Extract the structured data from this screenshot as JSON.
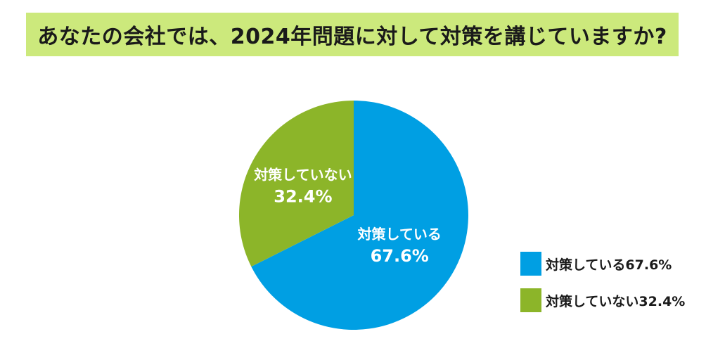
{
  "title": "あなたの会社では、2024年問題に対して対策を講じていますか?",
  "colors": {
    "title_background": "#cce97c",
    "series_1": "#009fe3",
    "series_2": "#8cb529"
  },
  "chart_data": {
    "type": "pie",
    "categories": [
      "対策している",
      "対策していない"
    ],
    "values": [
      67.6,
      32.4
    ],
    "unit": "%",
    "start_angle": "12 o'clock",
    "direction": "clockwise",
    "slice_labels": [
      {
        "name": "対策している",
        "value_text": "67.6%"
      },
      {
        "name": "対策していない",
        "value_text": "32.4%"
      }
    ],
    "legend": [
      "対策している67.6%",
      "対策していない32.4%"
    ],
    "legend_position": "bottom-right"
  }
}
